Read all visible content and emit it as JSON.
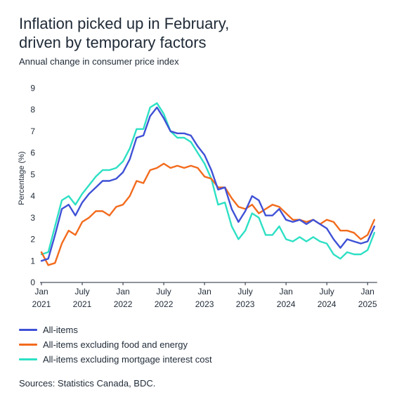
{
  "title_line1": "Inflation picked up in February,",
  "title_line2": "driven by temporary factors",
  "source": "Sources: Statistics Canada, BDC.",
  "chart_data": {
    "type": "line",
    "title": "Inflation picked up in February, driven by temporary factors",
    "subtitle": "Annual change in consumer price index",
    "ylabel": "Percentage (%)",
    "ylim": [
      0,
      9
    ],
    "yticks": [
      0,
      1,
      2,
      3,
      4,
      5,
      6,
      7,
      8,
      9
    ],
    "xticks": [
      {
        "month": 0,
        "line1": "Jan",
        "line2": "2021"
      },
      {
        "month": 6,
        "line1": "July",
        "line2": "2021"
      },
      {
        "month": 12,
        "line1": "Jan",
        "line2": "2022"
      },
      {
        "month": 18,
        "line1": "July",
        "line2": "2022"
      },
      {
        "month": 24,
        "line1": "Jan",
        "line2": "2023"
      },
      {
        "month": 30,
        "line1": "July",
        "line2": "2023"
      },
      {
        "month": 36,
        "line1": "Jan",
        "line2": "2024"
      },
      {
        "month": 42,
        "line1": "July",
        "line2": "2024"
      },
      {
        "month": 48,
        "line1": "Jan",
        "line2": "2025"
      }
    ],
    "x": [
      "2021-01",
      "2021-02",
      "2021-03",
      "2021-04",
      "2021-05",
      "2021-06",
      "2021-07",
      "2021-08",
      "2021-09",
      "2021-10",
      "2021-11",
      "2021-12",
      "2022-01",
      "2022-02",
      "2022-03",
      "2022-04",
      "2022-05",
      "2022-06",
      "2022-07",
      "2022-08",
      "2022-09",
      "2022-10",
      "2022-11",
      "2022-12",
      "2023-01",
      "2023-02",
      "2023-03",
      "2023-04",
      "2023-05",
      "2023-06",
      "2023-07",
      "2023-08",
      "2023-09",
      "2023-10",
      "2023-11",
      "2023-12",
      "2024-01",
      "2024-02",
      "2024-03",
      "2024-04",
      "2024-05",
      "2024-06",
      "2024-07",
      "2024-08",
      "2024-09",
      "2024-10",
      "2024-11",
      "2024-12",
      "2025-01",
      "2025-02"
    ],
    "grid": false,
    "legend": "bottom",
    "series": [
      {
        "name": "All-items",
        "color": "#3f51d6",
        "values": [
          1.0,
          1.1,
          2.2,
          3.4,
          3.6,
          3.1,
          3.7,
          4.1,
          4.4,
          4.7,
          4.7,
          4.8,
          5.1,
          5.7,
          6.7,
          6.8,
          7.7,
          8.1,
          7.6,
          7.0,
          6.9,
          6.9,
          6.8,
          6.3,
          5.9,
          5.2,
          4.3,
          4.4,
          3.4,
          2.8,
          3.3,
          4.0,
          3.8,
          3.1,
          3.1,
          3.4,
          2.9,
          2.8,
          2.9,
          2.7,
          2.9,
          2.7,
          2.5,
          2.0,
          1.6,
          2.0,
          1.9,
          1.8,
          1.9,
          2.6
        ]
      },
      {
        "name": "All-items excluding food and energy",
        "color": "#f26b1d",
        "values": [
          1.4,
          0.8,
          0.9,
          1.8,
          2.4,
          2.2,
          2.8,
          3.0,
          3.3,
          3.3,
          3.1,
          3.5,
          3.6,
          4.0,
          4.7,
          4.6,
          5.2,
          5.3,
          5.5,
          5.3,
          5.4,
          5.3,
          5.4,
          5.3,
          4.9,
          4.8,
          4.4,
          4.4,
          3.9,
          3.5,
          3.4,
          3.6,
          3.2,
          3.4,
          3.6,
          3.5,
          3.2,
          2.9,
          2.9,
          2.8,
          2.9,
          2.7,
          2.9,
          2.8,
          2.4,
          2.4,
          2.3,
          2.0,
          2.2,
          2.9
        ]
      },
      {
        "name": "All-items excluding mortgage interest cost",
        "color": "#2de0c4",
        "values": [
          1.3,
          1.4,
          2.6,
          3.8,
          4.0,
          3.6,
          4.1,
          4.5,
          4.9,
          5.2,
          5.2,
          5.3,
          5.6,
          6.2,
          7.1,
          7.1,
          8.1,
          8.3,
          7.8,
          7.0,
          6.7,
          6.7,
          6.5,
          6.0,
          5.5,
          4.8,
          3.6,
          3.7,
          2.6,
          2.0,
          2.4,
          3.2,
          3.0,
          2.2,
          2.2,
          2.6,
          2.0,
          1.9,
          2.1,
          1.9,
          2.1,
          1.9,
          1.8,
          1.3,
          1.1,
          1.4,
          1.3,
          1.3,
          1.5,
          2.3
        ]
      }
    ]
  }
}
